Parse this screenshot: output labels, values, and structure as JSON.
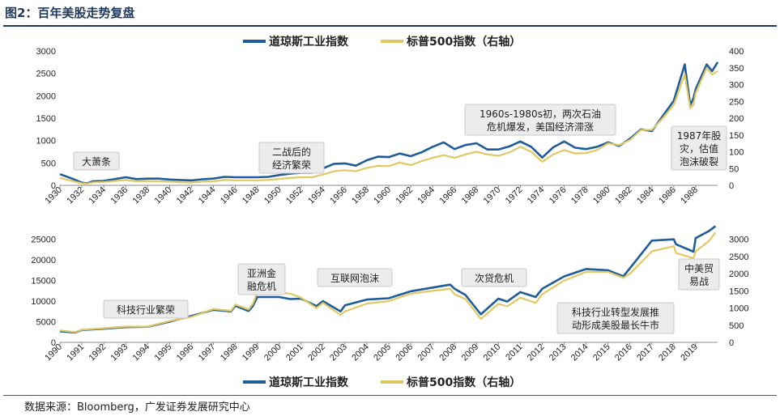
{
  "header": {
    "title": "图2：百年美股走势复盘"
  },
  "footer": {
    "source": "数据来源：Bloomberg，广发证券发展研究中心"
  },
  "colors": {
    "dow": "#1f5c99",
    "sp": "#e0c865",
    "rule": "#1f3a5f"
  },
  "chart_data": [
    {
      "type": "line",
      "legend": [
        "道琼斯工业指数",
        "标普500指数（右轴）"
      ],
      "legend_placement": "top",
      "xlim": [
        1930,
        1990
      ],
      "xticks": [
        "1930",
        "1932",
        "1934",
        "1936",
        "1938",
        "1940",
        "1942",
        "1944",
        "1946",
        "1948",
        "1950",
        "1952",
        "1954",
        "1956",
        "1958",
        "1960",
        "1962",
        "1964",
        "1966",
        "1968",
        "1970",
        "1972",
        "1974",
        "1976",
        "1978",
        "1980",
        "1982",
        "1984",
        "1986",
        "1988"
      ],
      "ylim_left": [
        0,
        3000
      ],
      "yticks_left": [
        "0",
        "500",
        "1000",
        "1500",
        "2000",
        "2500",
        "3000"
      ],
      "ylim_right": [
        0,
        400
      ],
      "yticks_right": [
        "0",
        "50",
        "100",
        "150",
        "200",
        "250",
        "300",
        "350",
        "400"
      ],
      "series": [
        {
          "name": "道琼斯工业指数",
          "axis": "left",
          "x": [
            1930,
            1931,
            1932,
            1932.5,
            1933,
            1934,
            1935,
            1936,
            1937,
            1938,
            1939,
            1940,
            1941,
            1942,
            1943,
            1944,
            1945,
            1946,
            1947,
            1948,
            1949,
            1950,
            1951,
            1952,
            1953,
            1954,
            1955,
            1956,
            1957,
            1958,
            1959,
            1960,
            1961,
            1962,
            1963,
            1964,
            1965,
            1966,
            1967,
            1968,
            1969,
            1970,
            1971,
            1972,
            1973,
            1974,
            1975,
            1976,
            1977,
            1978,
            1979,
            1980,
            1981,
            1982,
            1983,
            1984,
            1985,
            1986,
            1987,
            1987.5,
            1987.8,
            1988,
            1989,
            1989.5,
            1990
          ],
          "y": [
            250,
            160,
            60,
            45,
            90,
            100,
            140,
            180,
            140,
            150,
            150,
            130,
            120,
            110,
            135,
            150,
            190,
            180,
            180,
            180,
            190,
            230,
            260,
            280,
            280,
            380,
            480,
            490,
            440,
            560,
            640,
            630,
            710,
            650,
            740,
            860,
            960,
            810,
            900,
            940,
            800,
            800,
            870,
            980,
            860,
            620,
            850,
            980,
            840,
            810,
            860,
            960,
            880,
            1040,
            1250,
            1210,
            1550,
            1890,
            2700,
            1790,
            1950,
            2150,
            2700,
            2550,
            2750
          ]
        },
        {
          "name": "标普500指数（右轴）",
          "axis": "right",
          "x": [
            1930,
            1931,
            1932,
            1932.5,
            1933,
            1934,
            1935,
            1936,
            1937,
            1938,
            1939,
            1940,
            1941,
            1942,
            1943,
            1944,
            1945,
            1946,
            1947,
            1948,
            1949,
            1950,
            1951,
            1952,
            1953,
            1954,
            1955,
            1956,
            1957,
            1958,
            1959,
            1960,
            1961,
            1962,
            1963,
            1964,
            1965,
            1966,
            1967,
            1968,
            1969,
            1970,
            1971,
            1972,
            1973,
            1974,
            1975,
            1976,
            1977,
            1978,
            1979,
            1980,
            1981,
            1982,
            1983,
            1984,
            1985,
            1986,
            1987,
            1987.5,
            1987.8,
            1988,
            1989,
            1989.5,
            1990
          ],
          "y": [
            22,
            14,
            6,
            5,
            9,
            10,
            13,
            16,
            12,
            13,
            12,
            11,
            9,
            8,
            11,
            12,
            16,
            15,
            15,
            15,
            16,
            19,
            22,
            24,
            24,
            32,
            42,
            45,
            42,
            52,
            58,
            57,
            68,
            60,
            72,
            82,
            90,
            82,
            92,
            100,
            92,
            88,
            98,
            115,
            100,
            70,
            92,
            105,
            95,
            96,
            105,
            125,
            120,
            135,
            165,
            165,
            200,
            240,
            330,
            230,
            240,
            275,
            350,
            330,
            340
          ]
        }
      ],
      "annotations": [
        "大萧条",
        "二战后的经济繁荣",
        "1960s-1980s初，两次石油危机爆发，美国经济滞涨",
        "1987年股灾，估值泡沫破裂"
      ]
    },
    {
      "type": "line",
      "legend": [
        "道琼斯工业指数",
        "标普500指数（右轴）"
      ],
      "legend_placement": "bottom",
      "xlim": [
        1990,
        2020
      ],
      "xticks": [
        "1990",
        "1991",
        "1992",
        "1993",
        "1994",
        "1995",
        "1996",
        "1997",
        "1998",
        "1999",
        "2000",
        "2001",
        "2002",
        "2003",
        "2004",
        "2005",
        "2006",
        "2007",
        "2008",
        "2009",
        "2010",
        "2011",
        "2012",
        "2013",
        "2014",
        "2015",
        "2016",
        "2017",
        "2018",
        "2019"
      ],
      "ylim_left": [
        0,
        27500
      ],
      "yticks_left": [
        "0",
        "5000",
        "10000",
        "15000",
        "20000",
        "25000"
      ],
      "ylim_right": [
        0,
        3300
      ],
      "yticks_right": [
        "0",
        "500",
        "1000",
        "1500",
        "2000",
        "2500",
        "3000"
      ],
      "series": [
        {
          "name": "道琼斯工业指数",
          "axis": "left",
          "x": [
            1990,
            1990.7,
            1991,
            1992,
            1993,
            1994,
            1995,
            1996,
            1997,
            1997.8,
            1998,
            1998.6,
            1998.8,
            1999,
            2000,
            2000.5,
            2001,
            2001.7,
            2002,
            2002.8,
            2003,
            2004,
            2005,
            2006,
            2007,
            2007.8,
            2008,
            2008.5,
            2009.2,
            2010,
            2010.4,
            2011,
            2011.7,
            2012,
            2013,
            2014,
            2015,
            2015.7,
            2016,
            2017,
            2018,
            2018.1,
            2018.9,
            2019,
            2019.6,
            2019.9
          ],
          "y": [
            2700,
            2400,
            3000,
            3300,
            3700,
            3800,
            5000,
            6400,
            7900,
            7500,
            8900,
            7600,
            8800,
            11000,
            11000,
            10500,
            10600,
            8800,
            10000,
            7500,
            9000,
            10400,
            10700,
            12400,
            13300,
            14000,
            13000,
            11500,
            6800,
            10600,
            9900,
            12200,
            11000,
            13000,
            16000,
            17800,
            17500,
            16000,
            18000,
            24700,
            25000,
            23800,
            22000,
            25300,
            27000,
            28200
          ]
        },
        {
          "name": "标普500指数（右轴）",
          "axis": "right",
          "x": [
            1990,
            1990.7,
            1991,
            1992,
            1993,
            1994,
            1995,
            1996,
            1997,
            1997.8,
            1998,
            1998.6,
            1998.8,
            1999,
            2000,
            2000.5,
            2001,
            2001.7,
            2002,
            2002.8,
            2003,
            2004,
            2005,
            2006,
            2007,
            2007.8,
            2008,
            2008.5,
            2009.2,
            2010,
            2010.4,
            2011,
            2011.7,
            2012,
            2013,
            2014,
            2015,
            2015.7,
            2016,
            2017,
            2018,
            2018.1,
            2018.9,
            2019,
            2019.6,
            2019.9
          ],
          "y": [
            350,
            300,
            370,
            410,
            460,
            460,
            620,
            740,
            970,
            920,
            1100,
            960,
            1120,
            1450,
            1450,
            1420,
            1300,
            1000,
            1150,
            800,
            900,
            1130,
            1200,
            1420,
            1500,
            1560,
            1400,
            1260,
            680,
            1120,
            1050,
            1300,
            1150,
            1400,
            1800,
            2050,
            2050,
            1880,
            2000,
            2650,
            2800,
            2600,
            2450,
            2650,
            2950,
            3200
          ]
        }
      ],
      "annotations": [
        "科技行业繁荣",
        "亚洲金融危机",
        "互联网泡沫",
        "次贷危机",
        "科技行业转型发展推动形成美股最长牛市",
        "中美贸易战"
      ]
    }
  ]
}
